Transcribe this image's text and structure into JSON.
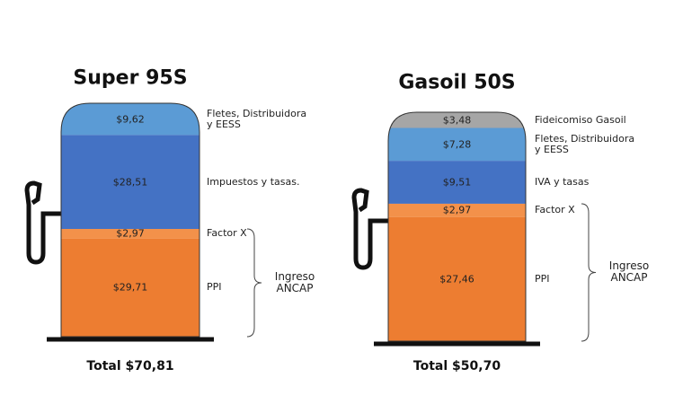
{
  "chart_data": [
    {
      "type": "pump",
      "title": "Super 95S",
      "total": "Total $70,81",
      "annotation": "Ingreso ANCAP",
      "series": [
        {
          "name": "Fletes, Distribuidora y EESS",
          "color": "#5b9bd5",
          "values": [
            9.62
          ],
          "value_labels": [
            "$9,62"
          ]
        },
        {
          "name": "Impuestos y tasas.",
          "color": "#4472c4",
          "values": [
            28.51
          ],
          "value_labels": [
            "$28,51"
          ]
        },
        {
          "name": "Factor X",
          "color": "#f3914a",
          "values": [
            2.97
          ],
          "value_labels": [
            "$2,97"
          ]
        },
        {
          "name": "PPI",
          "color": "#ed7d31",
          "values": [
            29.71
          ],
          "value_labels": [
            "$29,71"
          ]
        }
      ]
    },
    {
      "type": "pump",
      "title": "Gasoil 50S",
      "total": "Total $50,70",
      "annotation": "Ingreso ANCAP",
      "series": [
        {
          "name": "Fideicomiso Gasoil",
          "color": "#a6a6a6",
          "values": [
            3.48
          ],
          "value_labels": [
            "$3,48"
          ]
        },
        {
          "name": "Fletes, Distribuidora y EESS",
          "color": "#5b9bd5",
          "values": [
            7.28
          ],
          "value_labels": [
            "$7,28"
          ]
        },
        {
          "name": "IVA y tasas",
          "color": "#4472c4",
          "values": [
            9.51
          ],
          "value_labels": [
            "$9,51"
          ]
        },
        {
          "name": "Factor X",
          "color": "#f3914a",
          "values": [
            2.97
          ],
          "value_labels": [
            "$2,97"
          ]
        },
        {
          "name": "PPI",
          "color": "#ed7d31",
          "values": [
            27.46
          ],
          "value_labels": [
            "$27,46"
          ]
        }
      ]
    }
  ]
}
